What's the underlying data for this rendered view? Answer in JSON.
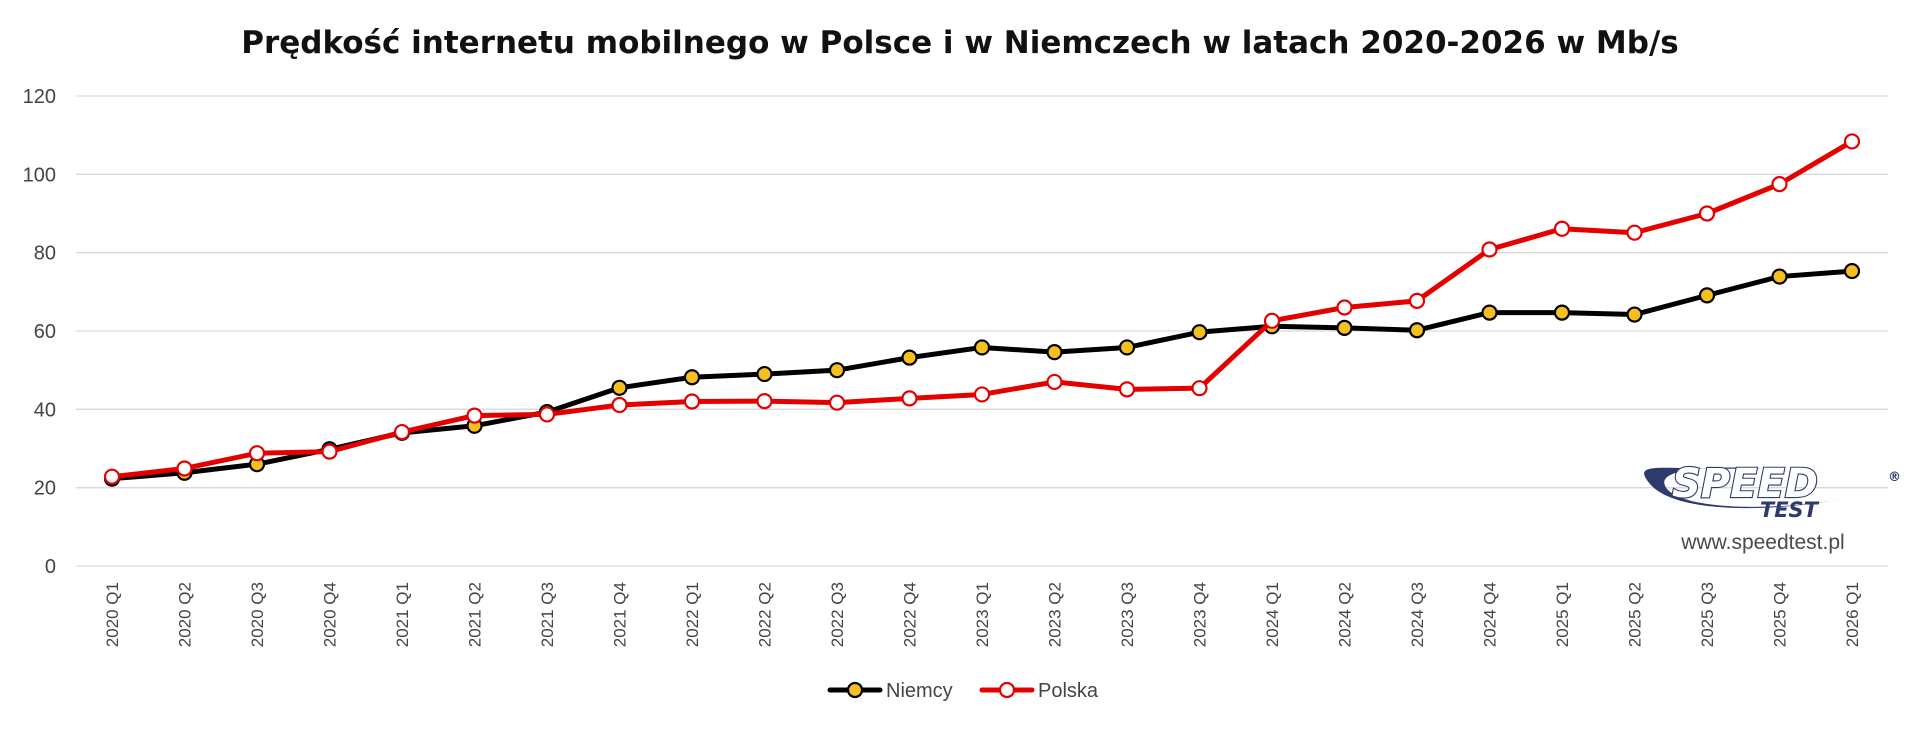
{
  "chart_data": {
    "type": "line",
    "title": "Prędkość internetu mobilnego w Polsce i w Niemczech w latach 2020-2026 w Mb/s",
    "xlabel": "",
    "ylabel": "",
    "ylim": [
      0,
      120
    ],
    "yticks": [
      0,
      20,
      40,
      60,
      80,
      100,
      120
    ],
    "grid": true,
    "legend_position": "bottom",
    "categories": [
      "2020 Q1",
      "2020 Q2",
      "2020 Q3",
      "2020 Q4",
      "2021 Q1",
      "2021 Q2",
      "2021 Q3",
      "2021 Q4",
      "2022 Q1",
      "2022 Q2",
      "2022 Q3",
      "2022 Q4",
      "2023 Q1",
      "2023 Q2",
      "2023 Q3",
      "2023 Q4",
      "2024 Q1",
      "2024 Q2",
      "2024 Q3",
      "2024 Q4",
      "2025 Q1",
      "2025 Q2",
      "2025 Q3",
      "2025 Q4",
      "2026 Q1"
    ],
    "series": [
      {
        "name": "Niemcy",
        "line_color": "#000000",
        "marker_fill": "#f4bf1f",
        "marker_stroke": "#000000",
        "values": [
          22.3,
          23.8,
          26.0,
          29.8,
          34.0,
          35.8,
          39.3,
          45.5,
          48.2,
          49.0,
          50.0,
          53.2,
          55.8,
          54.6,
          55.8,
          59.7,
          61.2,
          60.8,
          60.2,
          64.7,
          64.7,
          64.2,
          69.1,
          73.9,
          75.3
        ]
      },
      {
        "name": "Polska",
        "line_color": "#e50000",
        "marker_fill": "#ffffff",
        "marker_stroke": "#e50000",
        "values": [
          22.8,
          24.9,
          28.8,
          29.2,
          34.2,
          38.4,
          38.7,
          41.1,
          42.0,
          42.1,
          41.7,
          42.8,
          43.8,
          47.0,
          45.1,
          45.4,
          62.6,
          66.0,
          67.7,
          80.8,
          86.1,
          85.1,
          90.0,
          97.5,
          108.4
        ]
      }
    ]
  },
  "logo": {
    "word": "SPEED",
    "sub": "TEST",
    "registered": "®",
    "url": "www.speedtest.pl"
  }
}
